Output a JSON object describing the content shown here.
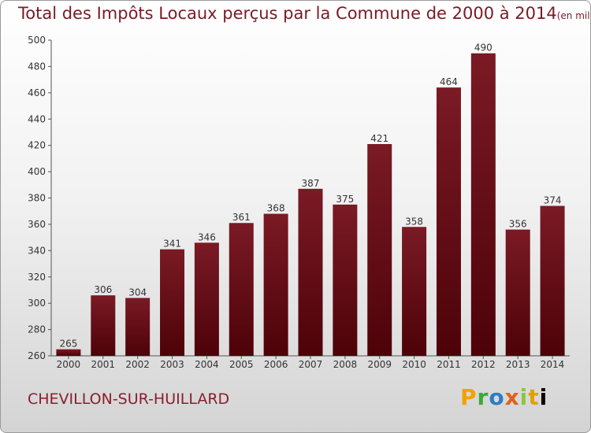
{
  "chart_data": {
    "type": "bar",
    "title": "Total des Impôts Locaux perçus par la Commune de 2000 à 2014",
    "subtitle": "(en milliers d'€)",
    "xlabel": "",
    "ylabel": "",
    "categories": [
      "2000",
      "2001",
      "2002",
      "2003",
      "2004",
      "2005",
      "2006",
      "2007",
      "2008",
      "2009",
      "2010",
      "2011",
      "2012",
      "2013",
      "2014"
    ],
    "values": [
      265,
      306,
      304,
      341,
      346,
      361,
      368,
      387,
      375,
      421,
      358,
      464,
      490,
      356,
      374
    ],
    "ylim": [
      260,
      500
    ],
    "yticks": [
      260,
      280,
      300,
      320,
      340,
      360,
      380,
      400,
      420,
      440,
      460,
      480,
      500
    ],
    "grid": false,
    "legend": "none",
    "bar_color": "#7a1a25"
  },
  "footer": {
    "commune": "CHEVILLON-SUR-HUILLARD",
    "logo_letters": [
      "P",
      "r",
      "o",
      "x",
      "i",
      "t",
      "i"
    ]
  }
}
